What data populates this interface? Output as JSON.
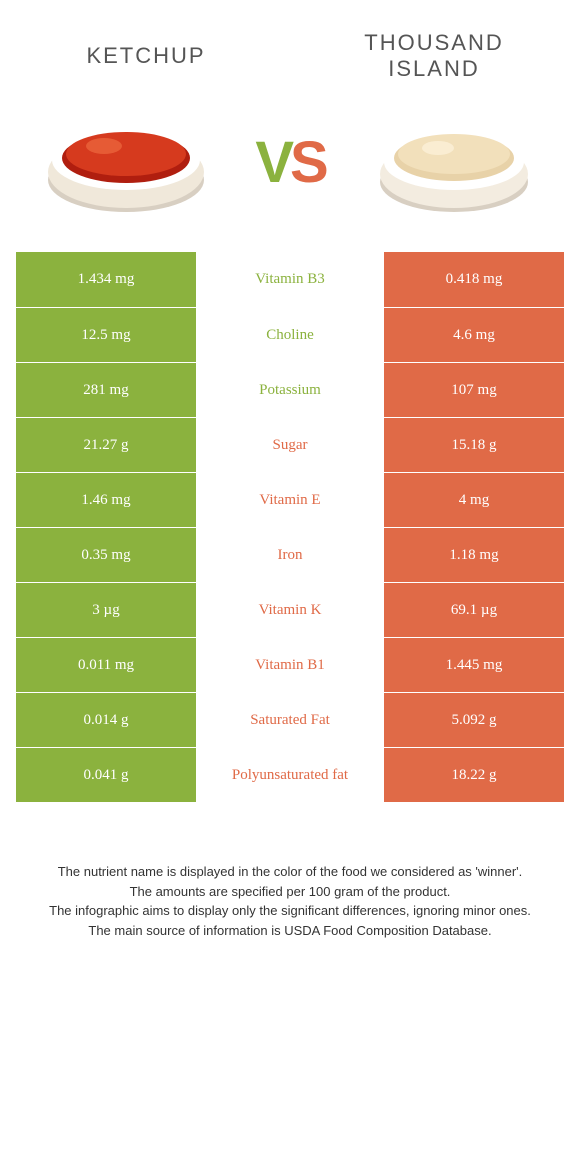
{
  "titles": {
    "left": "Ketchup",
    "right": "Thousand Island"
  },
  "vs": {
    "v": "V",
    "s": "S"
  },
  "colors": {
    "green": "#8bb23e",
    "orange": "#e06a47"
  },
  "rows": [
    {
      "left": "1.434 mg",
      "label": "Vitamin B3",
      "right": "0.418 mg",
      "winner": "green"
    },
    {
      "left": "12.5 mg",
      "label": "Choline",
      "right": "4.6 mg",
      "winner": "green"
    },
    {
      "left": "281 mg",
      "label": "Potassium",
      "right": "107 mg",
      "winner": "green"
    },
    {
      "left": "21.27 g",
      "label": "Sugar",
      "right": "15.18 g",
      "winner": "orange"
    },
    {
      "left": "1.46 mg",
      "label": "Vitamin E",
      "right": "4 mg",
      "winner": "orange"
    },
    {
      "left": "0.35 mg",
      "label": "Iron",
      "right": "1.18 mg",
      "winner": "orange"
    },
    {
      "left": "3 µg",
      "label": "Vitamin K",
      "right": "69.1 µg",
      "winner": "orange"
    },
    {
      "left": "0.011 mg",
      "label": "Vitamin B1",
      "right": "1.445 mg",
      "winner": "orange"
    },
    {
      "left": "0.014 g",
      "label": "Saturated Fat",
      "right": "5.092 g",
      "winner": "orange"
    },
    {
      "left": "0.041 g",
      "label": "Polyunsaturated fat",
      "right": "18.22 g",
      "winner": "orange"
    }
  ],
  "footer": [
    "The nutrient name is displayed in the color of the food we considered as 'winner'.",
    "The amounts are specified per 100 gram of the product.",
    "The infographic aims to display only the significant differences, ignoring minor ones.",
    "The main source of information is USDA Food Composition Database."
  ]
}
